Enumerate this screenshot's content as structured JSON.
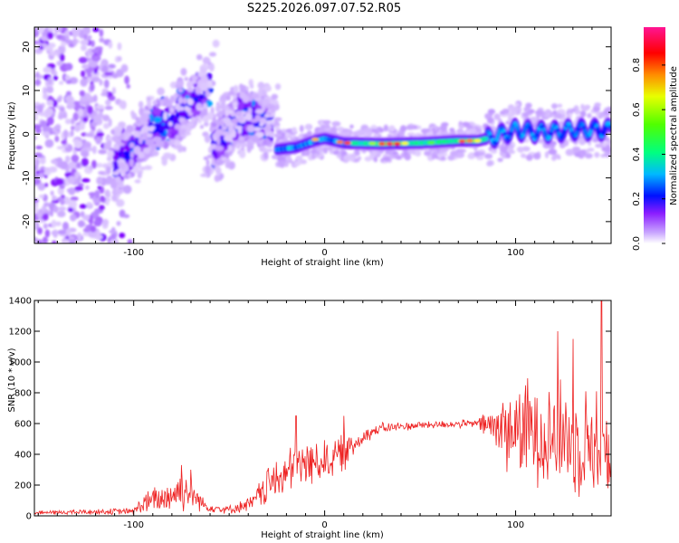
{
  "title": "S225.2026.097.07.52.R05",
  "chart_data": [
    {
      "type": "heatmap",
      "title": "S225.2026.097.07.52.R05",
      "xlabel": "Height of straight line (km)",
      "ylabel": "Frequency (Hz)",
      "xlim": [
        -152,
        150
      ],
      "ylim": [
        -25,
        24.5
      ],
      "x_ticks": [
        -100,
        0,
        100
      ],
      "y_ticks": [
        -20,
        -10,
        0,
        10,
        20
      ],
      "colorbar": {
        "label": "Normalized spectral amplitude",
        "ticks": [
          0.0,
          0.2,
          0.4,
          0.6,
          0.8
        ],
        "range": [
          0,
          0.97
        ],
        "colors": [
          "#ffffff",
          "#b98cff",
          "#7a00ff",
          "#0000ff",
          "#00d0ff",
          "#00ff60",
          "#a0ff00",
          "#ffff00",
          "#ff8000",
          "#ff0000",
          "#ff0090"
        ]
      },
      "features": [
        {
          "name": "noise",
          "x_range": [
            -152,
            -100
          ],
          "freq_range": [
            -25,
            24
          ],
          "level": 0.1
        },
        {
          "name": "rising-track-1",
          "points": [
            [
              -110,
              -8
            ],
            [
              -100,
              -3
            ],
            [
              -90,
              2
            ],
            [
              -80,
              3
            ],
            [
              -70,
              7
            ],
            [
              -65,
              9
            ],
            [
              -60,
              12
            ]
          ],
          "level": 0.22
        },
        {
          "name": "rising-track-2",
          "points": [
            [
              -58,
              -3
            ],
            [
              -50,
              1
            ],
            [
              -45,
              4
            ],
            [
              -38,
              4
            ],
            [
              -33,
              3
            ],
            [
              -28,
              3
            ]
          ],
          "level": 0.22
        },
        {
          "name": "main-line",
          "points": [
            [
              -25,
              -3.5
            ],
            [
              -15,
              -3
            ],
            [
              -5,
              -1.5
            ],
            [
              0,
              -1
            ],
            [
              10,
              -2
            ],
            [
              30,
              -2.2
            ],
            [
              50,
              -2
            ],
            [
              70,
              -1.5
            ],
            [
              80,
              -1.5
            ],
            [
              90,
              -0.5
            ],
            [
              100,
              1
            ],
            [
              110,
              0.5
            ],
            [
              120,
              0.5
            ],
            [
              130,
              1
            ],
            [
              140,
              1
            ],
            [
              150,
              1
            ]
          ],
          "level": 0.6
        }
      ]
    },
    {
      "type": "line",
      "xlabel": "Height of straight line (km)",
      "ylabel": "SNR (10 * v/v)",
      "xlim": [
        -152,
        150
      ],
      "ylim": [
        0,
        1400
      ],
      "x_ticks": [
        -100,
        0,
        100
      ],
      "y_ticks": [
        0,
        200,
        400,
        600,
        800,
        1000,
        1200,
        1400
      ],
      "series": [
        {
          "name": "SNR",
          "color": "#ee2222",
          "envelope": [
            {
              "x": -152,
              "base": 20,
              "amp": 15
            },
            {
              "x": -100,
              "base": 30,
              "amp": 25
            },
            {
              "x": -95,
              "base": 80,
              "amp": 80
            },
            {
              "x": -85,
              "base": 110,
              "amp": 120
            },
            {
              "x": -75,
              "base": 170,
              "amp": 160
            },
            {
              "x": -70,
              "base": 150,
              "amp": 120
            },
            {
              "x": -62,
              "base": 60,
              "amp": 40
            },
            {
              "x": -50,
              "base": 40,
              "amp": 30
            },
            {
              "x": -38,
              "base": 80,
              "amp": 60
            },
            {
              "x": -30,
              "base": 200,
              "amp": 150
            },
            {
              "x": -20,
              "base": 270,
              "amp": 170
            },
            {
              "x": -12,
              "base": 330,
              "amp": 200
            },
            {
              "x": -5,
              "base": 350,
              "amp": 150
            },
            {
              "x": 5,
              "base": 380,
              "amp": 160
            },
            {
              "x": 12,
              "base": 420,
              "amp": 120
            },
            {
              "x": 20,
              "base": 520,
              "amp": 60
            },
            {
              "x": 30,
              "base": 570,
              "amp": 40
            },
            {
              "x": 50,
              "base": 590,
              "amp": 30
            },
            {
              "x": 80,
              "base": 600,
              "amp": 30
            },
            {
              "x": 85,
              "base": 590,
              "amp": 120
            },
            {
              "x": 95,
              "base": 560,
              "amp": 300
            },
            {
              "x": 110,
              "base": 560,
              "amp": 400
            },
            {
              "x": 125,
              "base": 520,
              "amp": 420
            },
            {
              "x": 140,
              "base": 480,
              "amp": 400
            },
            {
              "x": 150,
              "base": 450,
              "amp": 420
            }
          ],
          "peaks": [
            {
              "x": -75,
              "y": 330
            },
            {
              "x": -70,
              "y": 300
            },
            {
              "x": -15,
              "y": 650
            },
            {
              "x": 10,
              "y": 650
            },
            {
              "x": 122,
              "y": 1200
            },
            {
              "x": 130,
              "y": 1150
            },
            {
              "x": 145,
              "y": 1400
            }
          ]
        }
      ]
    }
  ]
}
